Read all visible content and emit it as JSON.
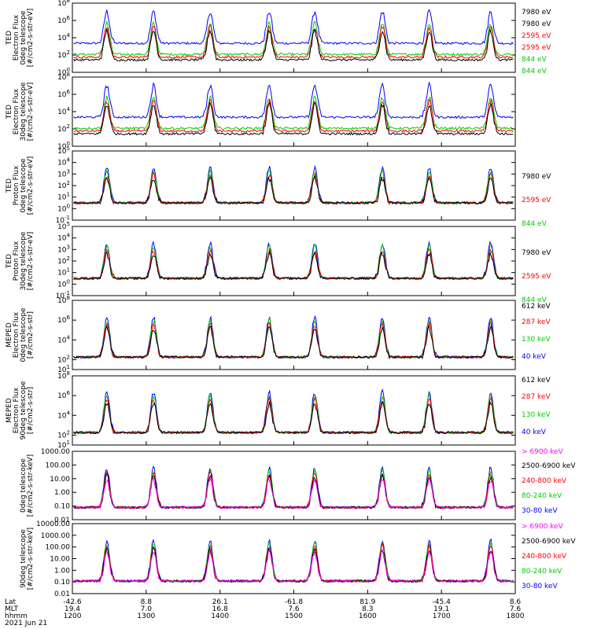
{
  "chart_data": {
    "type": "line",
    "title": "",
    "x_axis": {
      "rows": [
        {
          "name": "Lat",
          "ticks": [
            "-42.6",
            "8.8",
            "26.1",
            "-61.8",
            "81.9",
            "-45.4",
            "8.6"
          ]
        },
        {
          "name": "MLT",
          "ticks": [
            "19.4",
            "7.0",
            "16.8",
            "7.6",
            "8.3",
            "19.1",
            "7.6"
          ]
        },
        {
          "name": "hhmm",
          "ticks": [
            "1200",
            "1300",
            "1400",
            "1500",
            "1600",
            "1700",
            "1800"
          ]
        }
      ],
      "date": "2021 Jun 21",
      "range": [
        1200,
        1800
      ]
    },
    "panels": [
      {
        "instrument": "TED",
        "ylabel": [
          "TED",
          "Electron Flux",
          "0deg telescope",
          "[#/cm2-s-str-eV]"
        ],
        "yscale": "log",
        "ylim": [
          1,
          100000000
        ],
        "ytick_labels": [
          "10^0",
          "10^2",
          "10^4",
          "10^6",
          "10^8"
        ],
        "legend": [
          {
            "label": "7980 eV",
            "color": "#000000"
          },
          {
            "label": "2595 eV",
            "color": "#ff0000"
          },
          {
            "label": "844 eV",
            "color": "#00cc00"
          },
          {
            "label": "189 eV",
            "color": "#0000ff"
          }
        ]
      },
      {
        "instrument": "TED",
        "ylabel": [
          "TED",
          "Electron Flux",
          "30deg telescope",
          "[#/cm2-s-str-eV]"
        ],
        "yscale": "log",
        "ylim": [
          1,
          100000000
        ],
        "ytick_labels": [
          "10^0",
          "10^2",
          "10^4",
          "10^6",
          "10^8"
        ],
        "legend": [
          {
            "label": "7980 eV",
            "color": "#000000"
          },
          {
            "label": "2595 eV",
            "color": "#ff0000"
          },
          {
            "label": "844 eV",
            "color": "#00cc00"
          },
          {
            "label": "189 eV",
            "color": "#0000ff"
          }
        ]
      },
      {
        "instrument": "TED",
        "ylabel": [
          "TED",
          "Proton Flux",
          "0deg telescope",
          "[#/cm2-s-str-eV]"
        ],
        "yscale": "log",
        "ylim": [
          0.1,
          100000
        ],
        "ytick_labels": [
          "10^-1",
          "10^0",
          "10^1",
          "10^2",
          "10^3",
          "10^4",
          "10^5"
        ],
        "legend": [
          {
            "label": "7980 eV",
            "color": "#000000"
          },
          {
            "label": "2595 eV",
            "color": "#ff0000"
          },
          {
            "label": "844 eV",
            "color": "#00cc00"
          },
          {
            "label": "189 eV",
            "color": "#0000ff"
          }
        ]
      },
      {
        "instrument": "TED",
        "ylabel": [
          "TED",
          "Proton Flux",
          "30deg telescope",
          "[#/cm2-s-str-eV]"
        ],
        "yscale": "log",
        "ylim": [
          0.1,
          100000
        ],
        "ytick_labels": [
          "10^-1",
          "10^0",
          "10^1",
          "10^2",
          "10^3",
          "10^4",
          "10^5"
        ],
        "legend": [
          {
            "label": "7980 eV",
            "color": "#000000"
          },
          {
            "label": "2595 eV",
            "color": "#ff0000"
          },
          {
            "label": "844 eV",
            "color": "#00cc00"
          },
          {
            "label": "189 eV",
            "color": "#0000ff"
          }
        ]
      },
      {
        "instrument": "MEPED",
        "ylabel": [
          "MEPED",
          "Electron Flux",
          "0deg telescope",
          "[#/cm2-s-str]"
        ],
        "yscale": "log",
        "ylim": [
          10,
          100000000
        ],
        "ytick_labels": [
          "10^1",
          "10^2",
          "10^4",
          "10^6",
          "10^8"
        ],
        "legend": [
          {
            "label": "612 keV",
            "color": "#000000"
          },
          {
            "label": "287 keV",
            "color": "#ff0000"
          },
          {
            "label": "130 keV",
            "color": "#00cc00"
          },
          {
            "label": "40 keV",
            "color": "#0000ff"
          }
        ]
      },
      {
        "instrument": "MEPED",
        "ylabel": [
          "MEPED",
          "Electron Flux",
          "90deg telescope",
          "[#/cm2-s-str]"
        ],
        "yscale": "log",
        "ylim": [
          10,
          100000000
        ],
        "ytick_labels": [
          "10^1",
          "10^2",
          "10^4",
          "10^6",
          "10^8"
        ],
        "legend": [
          {
            "label": "612 keV",
            "color": "#000000"
          },
          {
            "label": "287 keV",
            "color": "#ff0000"
          },
          {
            "label": "130 keV",
            "color": "#00cc00"
          },
          {
            "label": "40 keV",
            "color": "#0000ff"
          }
        ]
      },
      {
        "instrument": "MEPED",
        "ylabel": [
          "0deg telescope",
          "[#/cm2-s-str-keV]"
        ],
        "yscale": "log",
        "ylim": [
          0.01,
          1000
        ],
        "ytick_labels": [
          "0.01",
          "0.10",
          "1.00",
          "10.00",
          "100.00",
          "1000.00"
        ],
        "legend": [
          {
            "label": "> 6900 keV",
            "color": "#ff00ff"
          },
          {
            "label": "2500-6900 keV",
            "color": "#000000"
          },
          {
            "label": "240-800 keV",
            "color": "#ff0000"
          },
          {
            "label": "80-240 keV",
            "color": "#00cc00"
          },
          {
            "label": "30-80 keV",
            "color": "#0000ff"
          }
        ]
      },
      {
        "instrument": "MEPED",
        "ylabel": [
          "90deg telescope",
          "[#/cm2-s-str-keV]"
        ],
        "yscale": "log",
        "ylim": [
          0.01,
          10000
        ],
        "ytick_labels": [
          "0.01",
          "0.10",
          "1.00",
          "10.00",
          "100.00",
          "1000.00",
          "10000.00"
        ],
        "legend": [
          {
            "label": "> 6900 keV",
            "color": "#ff00ff"
          },
          {
            "label": "2500-6900 keV",
            "color": "#000000"
          },
          {
            "label": "240-800 keV",
            "color": "#ff0000"
          },
          {
            "label": "80-240 keV",
            "color": "#00cc00"
          },
          {
            "label": "30-80 keV",
            "color": "#0000ff"
          }
        ]
      }
    ],
    "pass_centers_hhmm": [
      1228,
      1306,
      1352,
      1440,
      1517,
      1612,
      1650,
      1740
    ]
  }
}
